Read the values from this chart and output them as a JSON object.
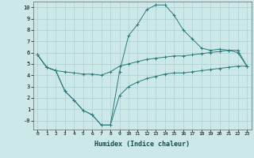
{
  "xlabel": "Humidex (Indice chaleur)",
  "line1_x": [
    0,
    1,
    2,
    3,
    4,
    5,
    6,
    7,
    8,
    9,
    10,
    11,
    12,
    13,
    14,
    15,
    16,
    17,
    18,
    19,
    20,
    21,
    22,
    23
  ],
  "line1_y": [
    5.8,
    4.7,
    4.4,
    2.6,
    1.8,
    0.9,
    0.5,
    -0.4,
    -0.4,
    4.3,
    7.5,
    8.5,
    9.8,
    10.2,
    10.2,
    9.3,
    8.0,
    7.2,
    6.4,
    6.2,
    6.3,
    6.2,
    6.0,
    4.8
  ],
  "line2_x": [
    0,
    1,
    2,
    3,
    4,
    5,
    6,
    7,
    8,
    9,
    10,
    11,
    12,
    13,
    14,
    15,
    16,
    17,
    18,
    19,
    20,
    21,
    22,
    23
  ],
  "line2_y": [
    5.8,
    4.7,
    4.4,
    4.3,
    4.2,
    4.1,
    4.1,
    4.0,
    4.3,
    4.8,
    5.0,
    5.2,
    5.4,
    5.5,
    5.6,
    5.7,
    5.7,
    5.8,
    5.9,
    6.0,
    6.1,
    6.2,
    6.2,
    4.8
  ],
  "line3_x": [
    0,
    1,
    2,
    3,
    4,
    5,
    6,
    7,
    8,
    9,
    10,
    11,
    12,
    13,
    14,
    15,
    16,
    17,
    18,
    19,
    20,
    21,
    22,
    23
  ],
  "line3_y": [
    5.8,
    4.7,
    4.4,
    2.6,
    1.8,
    0.9,
    0.5,
    -0.4,
    -0.4,
    2.2,
    3.0,
    3.4,
    3.7,
    3.9,
    4.1,
    4.2,
    4.2,
    4.3,
    4.4,
    4.5,
    4.6,
    4.7,
    4.8,
    4.8
  ],
  "line_color": "#2a7a7a",
  "bg_color": "#cce8e8",
  "grid_color": "#aad0d0",
  "ylim": [
    -0.8,
    10.5
  ],
  "xlim": [
    -0.5,
    23.5
  ],
  "yticks": [
    0,
    1,
    2,
    3,
    4,
    5,
    6,
    7,
    8,
    9,
    10
  ],
  "ytick_labels": [
    "-0",
    "1",
    "2",
    "3",
    "4",
    "5",
    "6",
    "7",
    "8",
    "9",
    "10"
  ],
  "xticks": [
    0,
    1,
    2,
    3,
    4,
    5,
    6,
    7,
    8,
    9,
    10,
    11,
    12,
    13,
    14,
    15,
    16,
    17,
    18,
    19,
    20,
    21,
    22,
    23
  ]
}
